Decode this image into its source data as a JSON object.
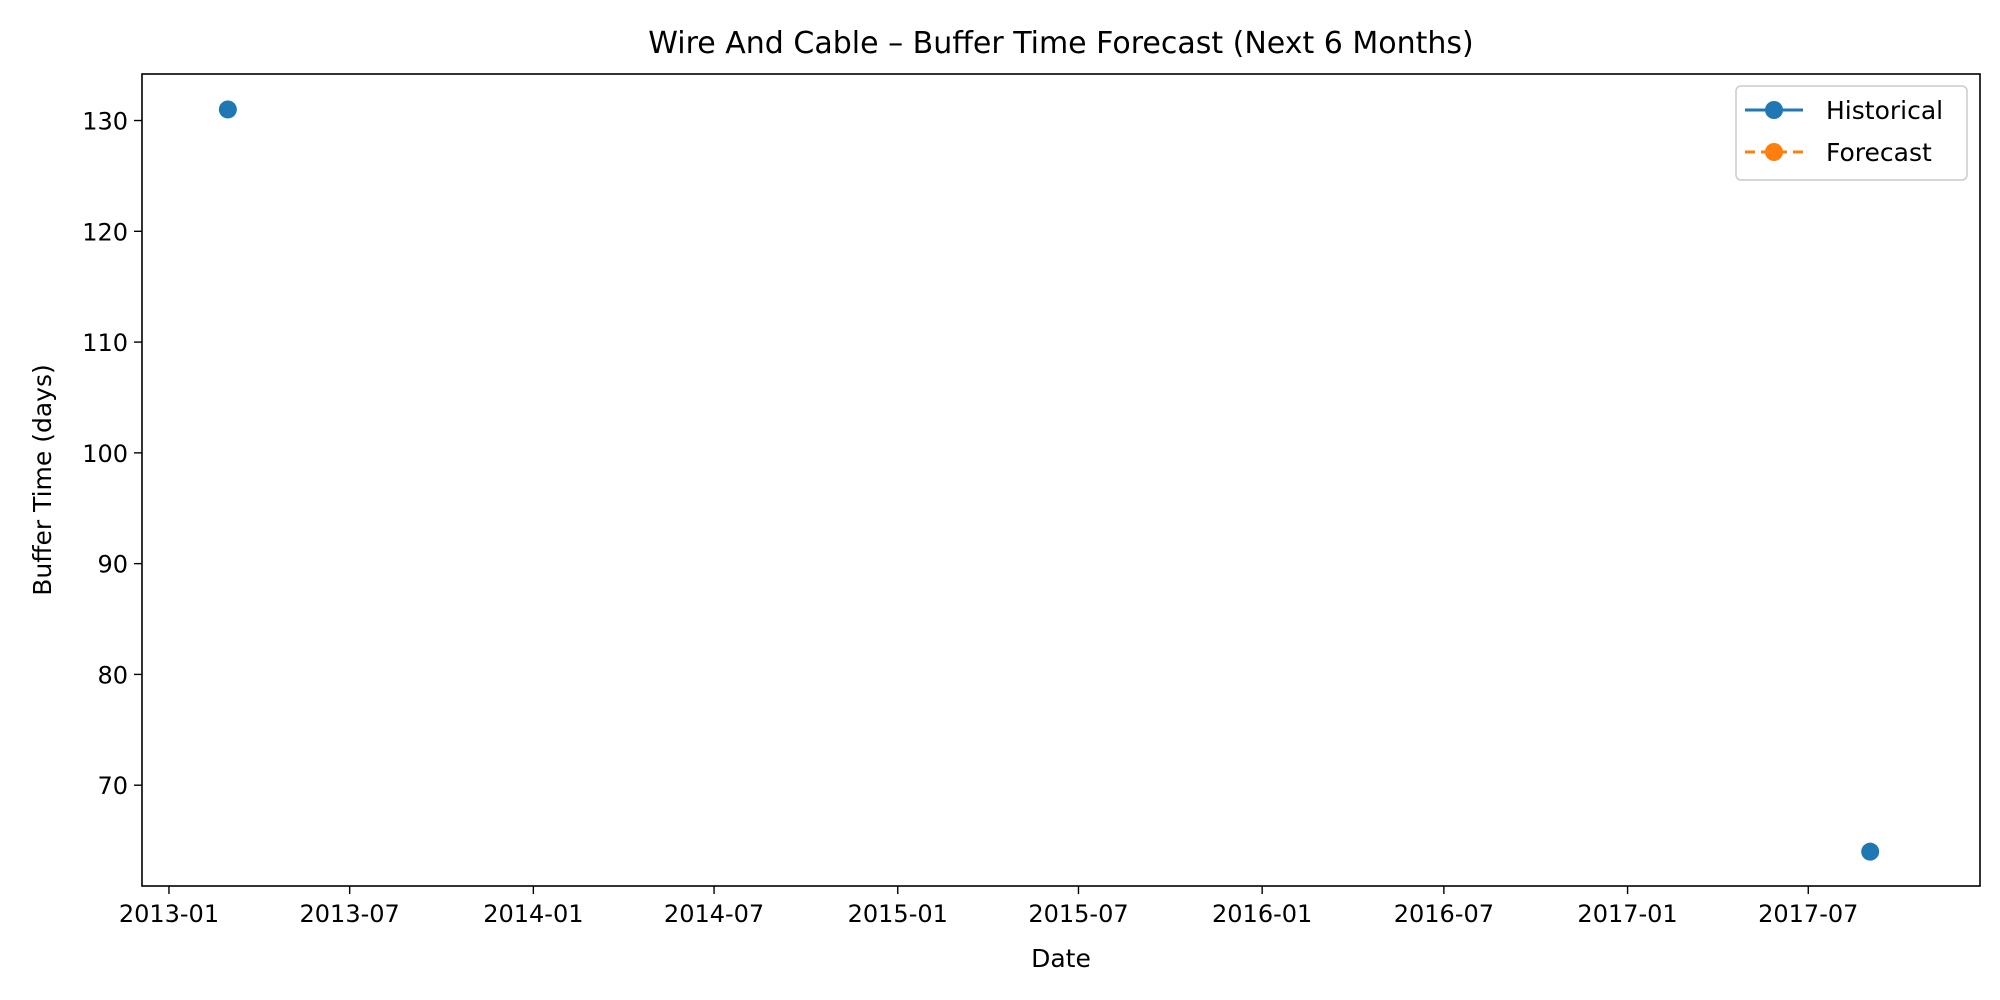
{
  "chart_data": {
    "type": "line",
    "title": "Wire And Cable – Buffer Time Forecast (Next 6 Months)",
    "xlabel": "Date",
    "ylabel": "Buffer Time (days)",
    "x_ticks": [
      "2013-01",
      "2013-07",
      "2014-01",
      "2014-07",
      "2015-01",
      "2015-07",
      "2016-01",
      "2016-07",
      "2017-01",
      "2017-07"
    ],
    "y_ticks": [
      70,
      80,
      90,
      100,
      110,
      120,
      130
    ],
    "xlim": [
      "2012-12-05",
      "2017-12-20"
    ],
    "ylim": [
      60.9,
      134.2
    ],
    "grid": false,
    "legend_position": "top-right",
    "series": [
      {
        "name": "Historical",
        "color": "#1f77b4",
        "linestyle": "solid",
        "marker": "circle",
        "points": [
          {
            "x": "2013-03-01",
            "y": 131
          },
          {
            "x": "2017-09-01",
            "y": 64
          }
        ]
      },
      {
        "name": "Forecast",
        "color": "#ff7f0e",
        "linestyle": "dashed",
        "marker": "circle",
        "points": []
      }
    ]
  }
}
